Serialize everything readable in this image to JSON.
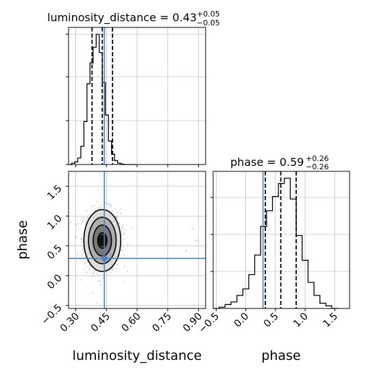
{
  "chart_data": [
    {
      "type": "histogram",
      "panel": "luminosity_distance-1d",
      "title_param": "luminosity_distance",
      "title_median": "0.43",
      "title_plus": "+0.05",
      "title_minus": "−0.05",
      "xlim": [
        0.265,
        0.935
      ],
      "bin_edges": [
        0.265,
        0.28,
        0.295,
        0.31,
        0.325,
        0.34,
        0.355,
        0.37,
        0.385,
        0.4,
        0.415,
        0.43,
        0.445,
        0.46,
        0.475,
        0.49,
        0.505,
        0.52,
        0.535,
        0.55,
        0.565,
        0.58,
        0.595
      ],
      "counts": [
        0.0,
        0.01,
        0.02,
        0.05,
        0.14,
        0.33,
        0.62,
        0.78,
        0.9,
        1.0,
        0.86,
        0.63,
        0.38,
        0.18,
        0.08,
        0.03,
        0.01,
        0.004,
        0.0,
        0.0,
        0.0,
        0.0
      ],
      "quantiles": [
        0.38,
        0.43,
        0.48
      ],
      "truth": 0.44,
      "grid": true
    },
    {
      "type": "histogram",
      "panel": "phase-1d",
      "title_param": "phase",
      "title_median": "0.59",
      "title_plus": "+0.26",
      "title_minus": "−0.26",
      "xlim": [
        -0.55,
        1.75
      ],
      "bin_edges": [
        -0.55,
        -0.45,
        -0.35,
        -0.25,
        -0.15,
        -0.05,
        0.05,
        0.15,
        0.25,
        0.35,
        0.45,
        0.55,
        0.65,
        0.75,
        0.85,
        0.95,
        1.05,
        1.15,
        1.25,
        1.35,
        1.45,
        1.55
      ],
      "counts": [
        0.0,
        0.01,
        0.03,
        0.05,
        0.1,
        0.15,
        0.26,
        0.41,
        0.63,
        0.75,
        0.86,
        0.96,
        1.0,
        0.84,
        0.56,
        0.37,
        0.2,
        0.1,
        0.04,
        0.02,
        0.0
      ],
      "quantiles": [
        0.33,
        0.59,
        0.85
      ],
      "truth": 0.29,
      "xticks": [
        "−0.5",
        "0.0",
        "0.5",
        "1.0",
        "1.5"
      ],
      "xtick_values": [
        -0.5,
        0.0,
        0.5,
        1.0,
        1.5
      ],
      "xlabel": "phase",
      "grid": true
    },
    {
      "type": "scatter",
      "panel": "joint",
      "xlabel": "luminosity_distance",
      "ylabel": "phase",
      "xlim": [
        0.265,
        0.935
      ],
      "ylim": [
        -0.55,
        1.75
      ],
      "xticks": [
        "0.30",
        "0.45",
        "0.60",
        "0.75",
        "0.90"
      ],
      "xtick_values": [
        0.3,
        0.45,
        0.6,
        0.75,
        0.9
      ],
      "yticks": [
        "−0.5",
        "0.0",
        "0.5",
        "1.0",
        "1.5"
      ],
      "ytick_values": [
        -0.5,
        0.0,
        0.5,
        1.0,
        1.5
      ],
      "center": [
        0.43,
        0.59
      ],
      "sigma": [
        0.045,
        0.26
      ],
      "contour_levels": [
        0.5,
        1.0,
        1.5,
        2.0
      ],
      "truth": [
        0.44,
        0.29
      ],
      "grid": true
    }
  ],
  "colors": {
    "truth": "#4a86b9",
    "ink": "#000000",
    "grid": "#c0c0c0",
    "points": "#888888"
  }
}
